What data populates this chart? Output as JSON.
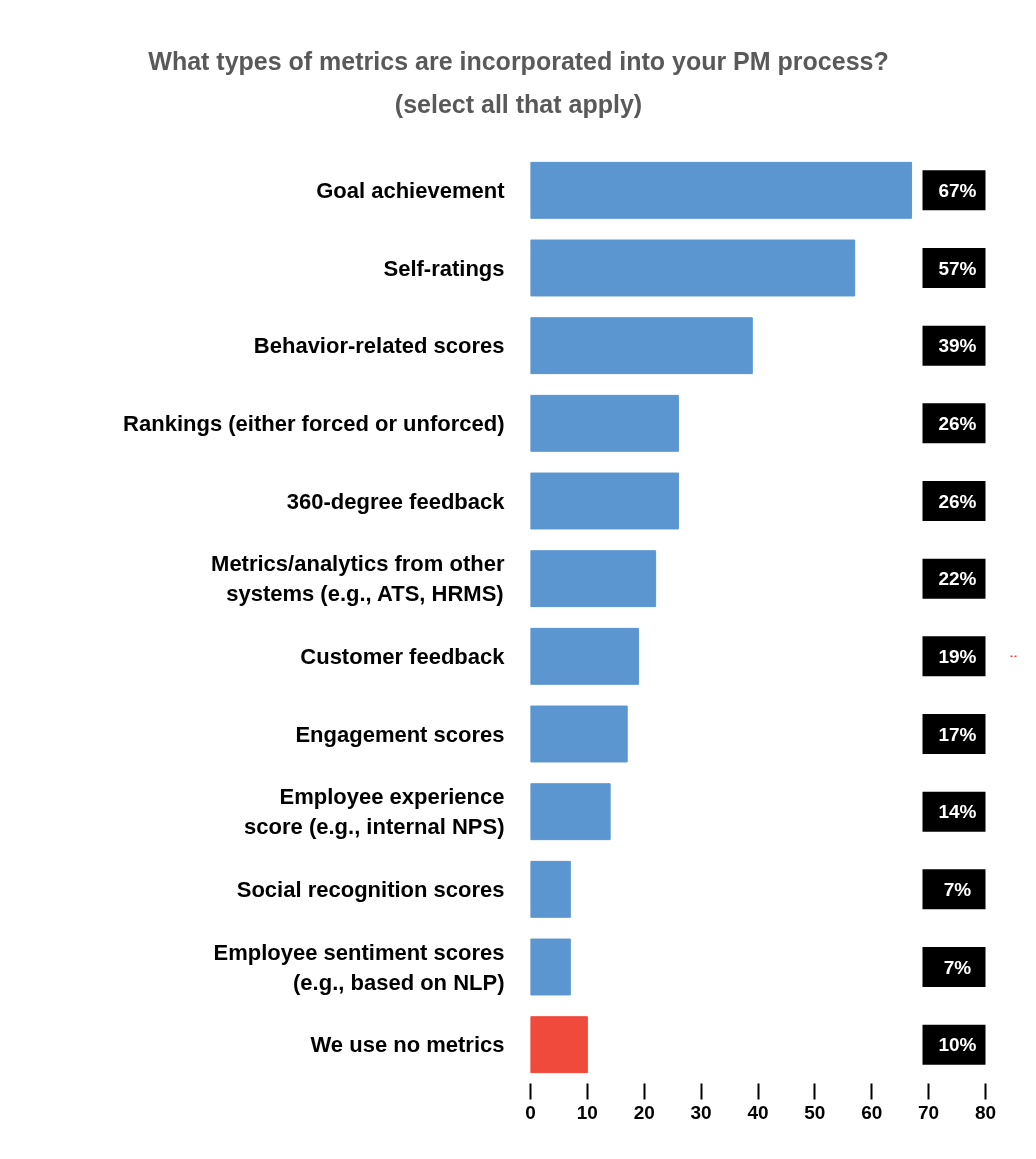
{
  "chart_data": {
    "type": "bar",
    "orientation": "horizontal",
    "title": "What types of metrics are incorporated into your PM process?\n(select all that apply)",
    "categories": [
      "Goal achievement",
      "Self-ratings",
      "Behavior-related scores",
      "Rankings (either forced or unforced)",
      "360-degree feedback",
      "Metrics/analytics from other\nsystems (e.g., ATS, HRMS)",
      "Customer feedback",
      "Engagement scores",
      "Employee experience\nscore (e.g., internal NPS)",
      "Social recognition scores",
      "Employee sentiment scores\n(e.g., based on NLP)",
      "We use no metrics"
    ],
    "values": [
      67,
      57,
      39,
      26,
      26,
      22,
      19,
      17,
      14,
      7,
      7,
      10
    ],
    "colors": [
      "#5b96d0",
      "#5b96d0",
      "#5b96d0",
      "#5b96d0",
      "#5b96d0",
      "#5b96d0",
      "#5b96d0",
      "#5b96d0",
      "#5b96d0",
      "#5b96d0",
      "#5b96d0",
      "#f04a3c"
    ],
    "value_labels": [
      "67%",
      "57%",
      "39%",
      "26%",
      "26%",
      "22%",
      "19%",
      "17%",
      "14%",
      "7%",
      "7%",
      "10%"
    ],
    "xlim": [
      0,
      80
    ],
    "xticks": [
      0,
      10,
      20,
      30,
      40,
      50,
      60,
      70,
      80
    ],
    "grid": false
  }
}
